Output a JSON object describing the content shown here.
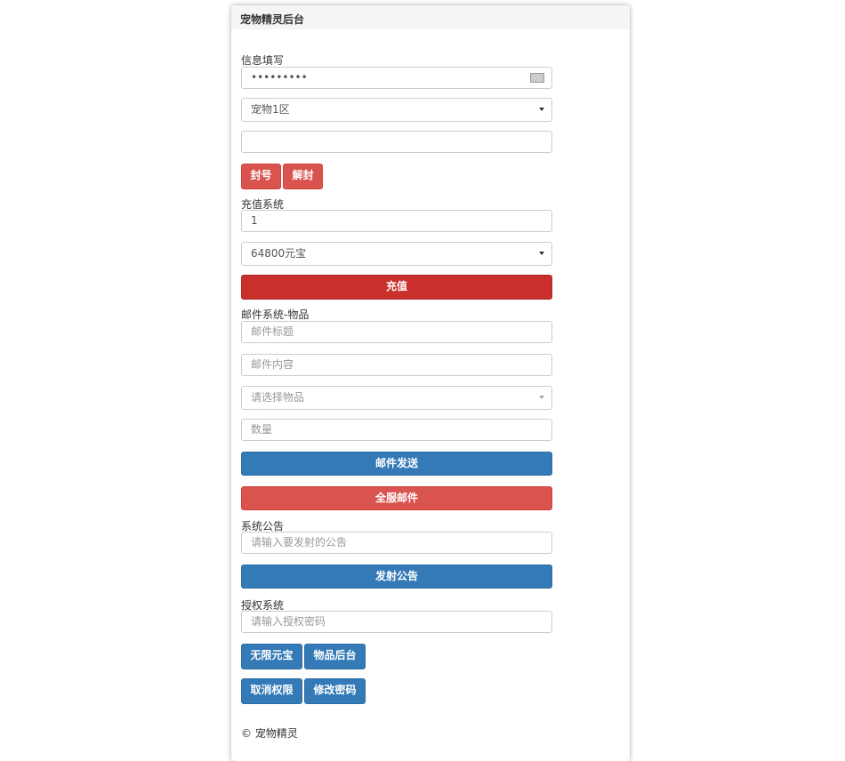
{
  "title": "宠物精灵后台",
  "info": {
    "label": "信息填写",
    "password_value": "•••••••••",
    "server_select": "宠物1区",
    "account_value": "",
    "ban_label": "封号",
    "unban_label": "解封"
  },
  "recharge": {
    "label": "充值系统",
    "amount_value": "1",
    "package_select": "64800元宝",
    "submit_label": "充值"
  },
  "mail": {
    "label": "邮件系统-物品",
    "title_placeholder": "邮件标题",
    "content_placeholder": "邮件内容",
    "item_placeholder": "请选择物品",
    "qty_placeholder": "数量",
    "send_label": "邮件发送",
    "all_label": "全服邮件"
  },
  "notice": {
    "label": "系统公告",
    "placeholder": "请输入要发射的公告",
    "send_label": "发射公告"
  },
  "auth": {
    "label": "授权系统",
    "placeholder": "请输入授权密码",
    "buttons": [
      "无限元宝",
      "物品后台",
      "取消权限",
      "修改密码"
    ]
  },
  "footer": "© 宠物精灵"
}
